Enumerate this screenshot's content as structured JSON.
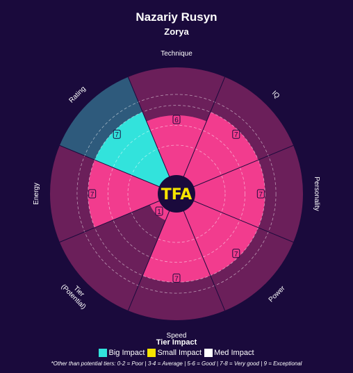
{
  "header": {
    "title": "Nazariy Rusyn",
    "subtitle": "Zorya"
  },
  "chart_data": {
    "type": "polar-bar",
    "max": 9,
    "center_logo": "TFA",
    "categories": [
      {
        "label": "Technique",
        "value": 6,
        "impact": "Small Impact"
      },
      {
        "label": "IQ",
        "value": 7,
        "impact": "Small Impact"
      },
      {
        "label": "Personality",
        "value": 7,
        "impact": "Small Impact"
      },
      {
        "label": "Power",
        "value": 7,
        "impact": "Small Impact"
      },
      {
        "label": "Speed",
        "value": 7,
        "impact": "Small Impact"
      },
      {
        "label": "Tier\n(Potential)",
        "value": 1,
        "impact": "Small Impact"
      },
      {
        "label": "Energy",
        "value": 7,
        "impact": "Small Impact"
      },
      {
        "label": "Rating",
        "value": 7,
        "impact": "Big Impact"
      }
    ],
    "colors": {
      "background": "#1a0a3c",
      "track": "#6b1f5a",
      "track_big": "#2e5a7c",
      "bar": "#f23c8e",
      "bar_big": "#32e3dc",
      "center": "#1a0a3c",
      "logo": "#f6e400"
    }
  },
  "legend": {
    "title": "Tier Impact",
    "items": [
      {
        "label": "Big Impact",
        "color": "#32e3dc"
      },
      {
        "label": "Small Impact",
        "color": "#f6e400"
      },
      {
        "label": "Med Impact",
        "color": "#ffffff"
      }
    ]
  },
  "footnote": "*Other than potential tiers: 0-2 = Poor | 3-4 = Average | 5-6 = Good | 7-8 = Very good | 9 = Exceptional"
}
